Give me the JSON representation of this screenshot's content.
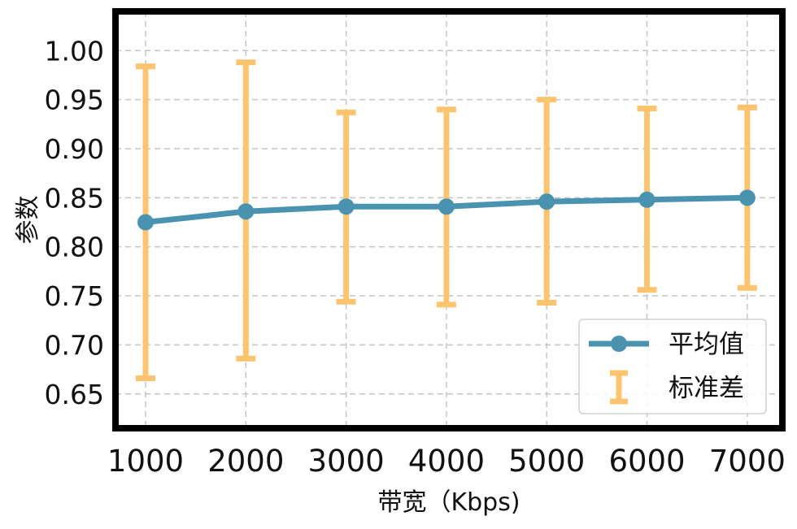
{
  "chart_data": {
    "type": "line",
    "title": "",
    "xlabel": "带宽（Kbps)",
    "ylabel": "参数",
    "x": [
      1000,
      2000,
      3000,
      4000,
      5000,
      6000,
      7000
    ],
    "x_tick_labels": [
      "1000",
      "2000",
      "3000",
      "4000",
      "5000",
      "6000",
      "7000"
    ],
    "y_tick_labels": [
      "0.65",
      "0.70",
      "0.75",
      "0.80",
      "0.85",
      "0.90",
      "0.95",
      "1.00"
    ],
    "y_ticks": [
      0.65,
      0.7,
      0.75,
      0.8,
      0.85,
      0.9,
      0.95,
      1.0
    ],
    "xlim": [
      700,
      7350
    ],
    "ylim": [
      0.615,
      1.04
    ],
    "grid": true,
    "legend_position": "bottom-right",
    "series": [
      {
        "name": "平均值",
        "kind": "line-with-markers",
        "color": "#4a93b0",
        "values": [
          0.825,
          0.836,
          0.841,
          0.841,
          0.846,
          0.848,
          0.85
        ]
      },
      {
        "name": "标准差",
        "kind": "errorbar",
        "color": "#fcc46f",
        "lower": [
          0.666,
          0.686,
          0.744,
          0.741,
          0.743,
          0.756,
          0.758
        ],
        "upper": [
          0.984,
          0.988,
          0.937,
          0.94,
          0.95,
          0.941,
          0.942
        ]
      }
    ]
  }
}
